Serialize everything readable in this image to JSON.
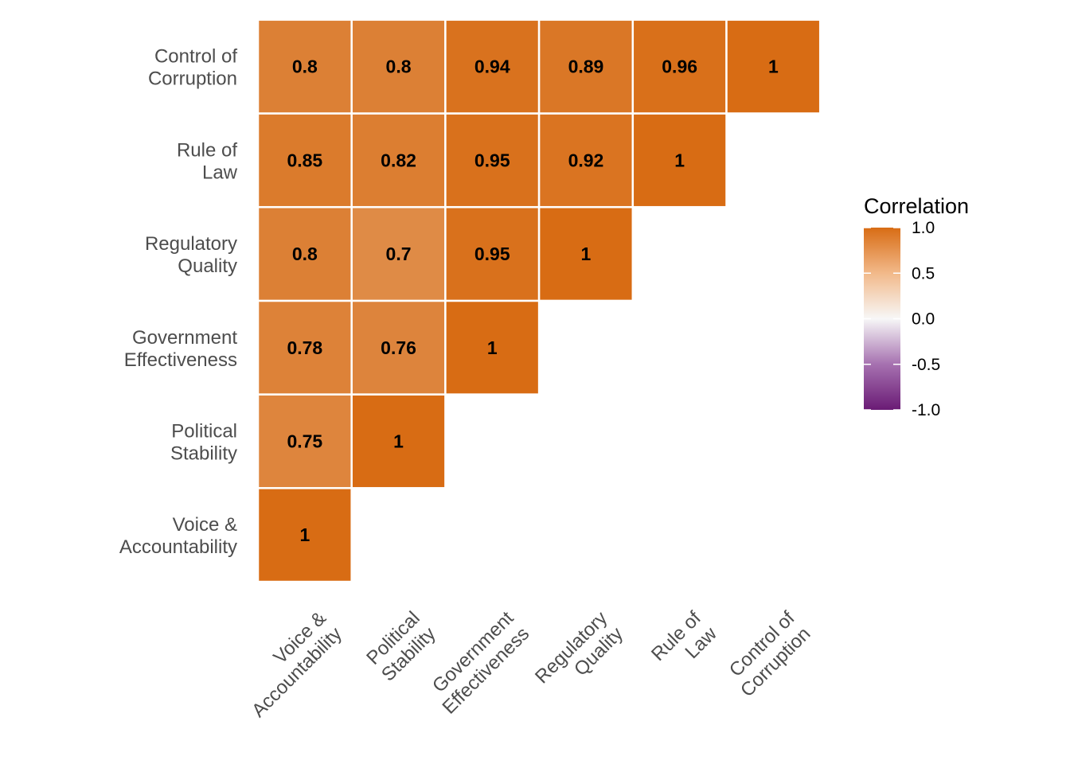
{
  "chart_data": {
    "type": "heatmap",
    "title": "",
    "xlabel": "",
    "ylabel": "",
    "variables": [
      [
        "Voice &",
        "Accountability"
      ],
      [
        "Political",
        "Stability"
      ],
      [
        "Government",
        "Effectiveness"
      ],
      [
        "Regulatory",
        "Quality"
      ],
      [
        "Rule of",
        "Law"
      ],
      [
        "Control of",
        "Corruption"
      ]
    ],
    "cells": [
      {
        "x": 0,
        "y": 0,
        "value": 1,
        "label": "1"
      },
      {
        "x": 0,
        "y": 1,
        "value": 0.75,
        "label": "0.75"
      },
      {
        "x": 1,
        "y": 1,
        "value": 1,
        "label": "1"
      },
      {
        "x": 0,
        "y": 2,
        "value": 0.78,
        "label": "0.78"
      },
      {
        "x": 1,
        "y": 2,
        "value": 0.76,
        "label": "0.76"
      },
      {
        "x": 2,
        "y": 2,
        "value": 1,
        "label": "1"
      },
      {
        "x": 0,
        "y": 3,
        "value": 0.8,
        "label": "0.8"
      },
      {
        "x": 1,
        "y": 3,
        "value": 0.7,
        "label": "0.7"
      },
      {
        "x": 2,
        "y": 3,
        "value": 0.95,
        "label": "0.95"
      },
      {
        "x": 3,
        "y": 3,
        "value": 1,
        "label": "1"
      },
      {
        "x": 0,
        "y": 4,
        "value": 0.85,
        "label": "0.85"
      },
      {
        "x": 1,
        "y": 4,
        "value": 0.82,
        "label": "0.82"
      },
      {
        "x": 2,
        "y": 4,
        "value": 0.95,
        "label": "0.95"
      },
      {
        "x": 3,
        "y": 4,
        "value": 0.92,
        "label": "0.92"
      },
      {
        "x": 4,
        "y": 4,
        "value": 1,
        "label": "1"
      },
      {
        "x": 0,
        "y": 5,
        "value": 0.8,
        "label": "0.8"
      },
      {
        "x": 1,
        "y": 5,
        "value": 0.8,
        "label": "0.8"
      },
      {
        "x": 2,
        "y": 5,
        "value": 0.94,
        "label": "0.94"
      },
      {
        "x": 3,
        "y": 5,
        "value": 0.89,
        "label": "0.89"
      },
      {
        "x": 4,
        "y": 5,
        "value": 0.96,
        "label": "0.96"
      },
      {
        "x": 5,
        "y": 5,
        "value": 1,
        "label": "1"
      }
    ],
    "legend": {
      "title": "Correlation",
      "placement": "right",
      "range": [
        -1,
        1
      ],
      "breaks": [
        1.0,
        0.5,
        0.0,
        -0.5,
        -1.0
      ],
      "break_labels": [
        "1.0",
        "0.5",
        "0.0",
        "-0.5",
        "-1.0"
      ]
    },
    "colors": {
      "high": "#d86c14",
      "mid": "#f7f7f7",
      "low": "#6a1b75",
      "gradient_stops": [
        "#6a1b75",
        "#a671b0",
        "#f7f7f7",
        "#f2b98a",
        "#d86c14"
      ]
    },
    "grid": false
  }
}
